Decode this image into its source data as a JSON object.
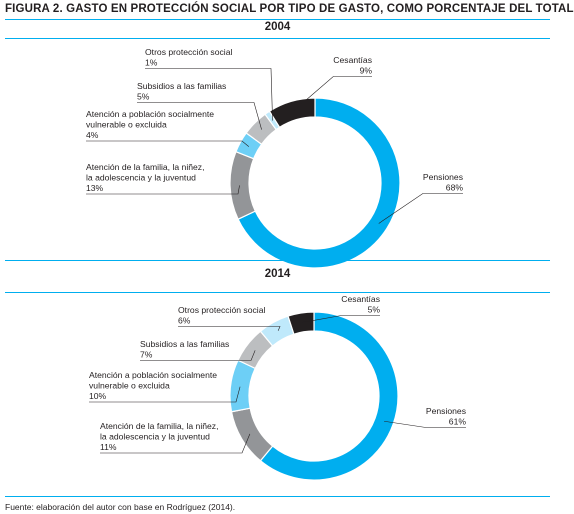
{
  "figure_title": "FIGURA 2. GASTO EN PROTECCIÓN SOCIAL POR TIPO DE GASTO, COMO PORCENTAJE DEL TOTAL",
  "source": "Fuente: elaboración del autor con base en Rodríguez (2014).",
  "colors": {
    "pensiones": "#00aeef",
    "atencion_familia": "#939598",
    "atencion_poblacion": "#6dcff6",
    "subsidios": "#bcbec0",
    "otros": "#bfe9fb",
    "cesantias": "#231f20",
    "rule": "#00aeef"
  },
  "chart_data": [
    {
      "type": "pie",
      "title": "2004",
      "slices": [
        {
          "name": "Pensiones",
          "value": 68,
          "label": "68%",
          "color": "#00aeef"
        },
        {
          "name": "Atención de la familia, la niñez, la adolescencia y la juventud",
          "label_lines": [
            "Atención de la familia, la niñez,",
            "la adolescencia y la juventud"
          ],
          "value": 13,
          "label": "13%",
          "color": "#939598"
        },
        {
          "name": "Atención a población socialmente vulnerable o excluida",
          "label_lines": [
            "Atención a población socialmente",
            "vulnerable o excluida"
          ],
          "value": 4,
          "label": "4%",
          "color": "#6dcff6"
        },
        {
          "name": "Subsidios a las familias",
          "label_lines": [
            "Subsidios a las familias"
          ],
          "value": 5,
          "label": "5%",
          "color": "#bcbec0"
        },
        {
          "name": "Otros protección social",
          "label_lines": [
            "Otros protección social"
          ],
          "value": 1,
          "label": "1%",
          "color": "#bfe9fb"
        },
        {
          "name": "Cesantías",
          "label_lines": [
            "Cesantías"
          ],
          "value": 9,
          "label": "9%",
          "color": "#231f20"
        }
      ]
    },
    {
      "type": "pie",
      "title": "2014",
      "slices": [
        {
          "name": "Pensiones",
          "value": 61,
          "label": "61%",
          "color": "#00aeef"
        },
        {
          "name": "Atención de la familia, la niñez, la adolescencia y la juventud",
          "label_lines": [
            "Atención de la familia, la niñez,",
            "la adolescencia y la juventud"
          ],
          "value": 11,
          "label": "11%",
          "color": "#939598"
        },
        {
          "name": "Atención a población socialmente vulnerable o excluida",
          "label_lines": [
            "Atención a población socialmente",
            "vulnerable o excluida"
          ],
          "value": 10,
          "label": "10%",
          "color": "#6dcff6"
        },
        {
          "name": "Subsidios a las familias",
          "label_lines": [
            "Subsidios a las familias"
          ],
          "value": 7,
          "label": "7%",
          "color": "#bcbec0"
        },
        {
          "name": "Otros protección social",
          "label_lines": [
            "Otros protección social"
          ],
          "value": 6,
          "label": "6%",
          "color": "#bfe9fb"
        },
        {
          "name": "Cesantías",
          "label_lines": [
            "Cesantías"
          ],
          "value": 5,
          "label": "5%",
          "color": "#231f20"
        }
      ]
    }
  ]
}
